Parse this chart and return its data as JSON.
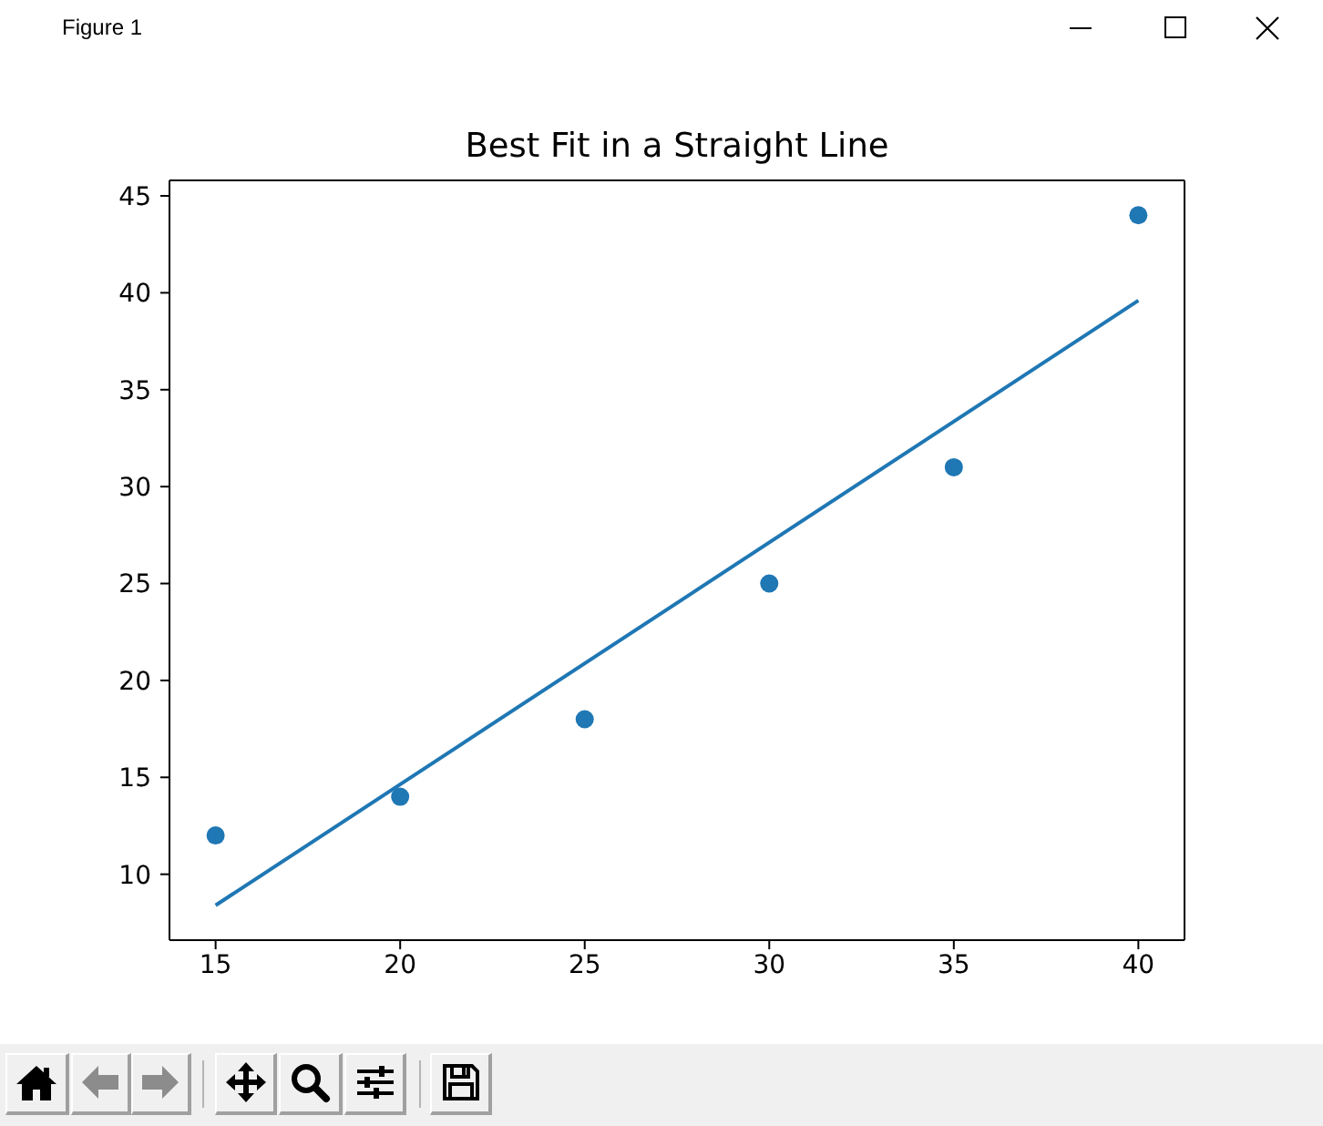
{
  "chart_data": {
    "type": "scatter",
    "title": "Best Fit in a Straight Line",
    "annotations": [
      "Figure 1"
    ],
    "x": [
      15,
      20,
      25,
      30,
      35,
      40
    ],
    "series": [
      {
        "color": "#1f77b4",
        "marker": "circle",
        "values": [
          12,
          14,
          18,
          25,
          31,
          44
        ]
      },
      {
        "type": "line",
        "color": "#1f77b4",
        "x": [
          15,
          40
        ],
        "values": [
          8.4,
          39.6
        ]
      }
    ],
    "xlim": [
      13.75,
      41.25
    ],
    "ylim": [
      6.6,
      45.8
    ],
    "xticks": [
      15,
      20,
      25,
      30,
      35,
      40
    ],
    "yticks": [
      10,
      15,
      20,
      25,
      30,
      35,
      40,
      45
    ]
  }
}
